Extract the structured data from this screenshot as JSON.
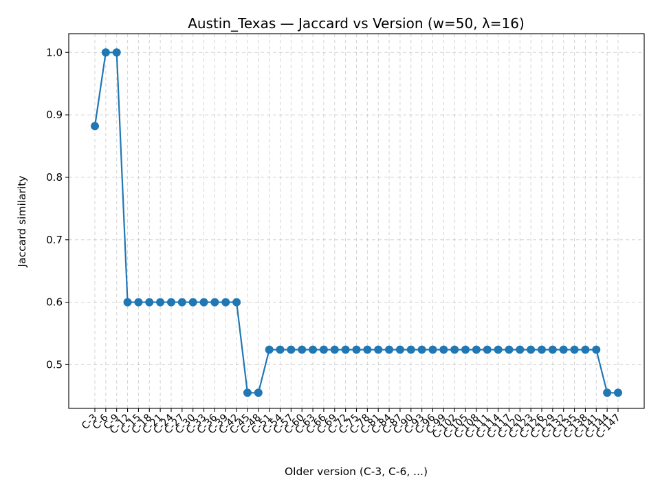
{
  "chart_data": {
    "type": "line",
    "title": "Austin_Texas — Jaccard vs Version (w=50, λ=16)",
    "xlabel": "Older version (C-3, C-6, ...)",
    "ylabel": "Jaccard similarity",
    "ylim": [
      0.43,
      1.03
    ],
    "yticks": [
      0.5,
      0.6,
      0.7,
      0.8,
      0.9,
      1.0
    ],
    "ytick_labels": [
      "0.5",
      "0.6",
      "0.7",
      "0.8",
      "0.9",
      "1.0"
    ],
    "grid": true,
    "categories": [
      "C-3",
      "C-6",
      "C-9",
      "C-12",
      "C-15",
      "C-18",
      "C-21",
      "C-24",
      "C-27",
      "C-30",
      "C-33",
      "C-36",
      "C-39",
      "C-42",
      "C-45",
      "C-48",
      "C-51",
      "C-54",
      "C-57",
      "C-60",
      "C-63",
      "C-66",
      "C-69",
      "C-72",
      "C-75",
      "C-78",
      "C-81",
      "C-84",
      "C-87",
      "C-90",
      "C-93",
      "C-96",
      "C-99",
      "C-102",
      "C-105",
      "C-108",
      "C-111",
      "C-114",
      "C-117",
      "C-120",
      "C-123",
      "C-126",
      "C-129",
      "C-132",
      "C-135",
      "C-138",
      "C-141",
      "C-144",
      "C-147"
    ],
    "series": [
      {
        "color": "#1f77b4",
        "values": [
          0.882,
          1.0,
          1.0,
          0.6,
          0.6,
          0.6,
          0.6,
          0.6,
          0.6,
          0.6,
          0.6,
          0.6,
          0.6,
          0.6,
          0.455,
          0.455,
          0.524,
          0.524,
          0.524,
          0.524,
          0.524,
          0.524,
          0.524,
          0.524,
          0.524,
          0.524,
          0.524,
          0.524,
          0.524,
          0.524,
          0.524,
          0.524,
          0.524,
          0.524,
          0.524,
          0.524,
          0.524,
          0.524,
          0.524,
          0.524,
          0.524,
          0.524,
          0.524,
          0.524,
          0.524,
          0.524,
          0.524,
          0.455,
          0.455
        ]
      }
    ]
  }
}
